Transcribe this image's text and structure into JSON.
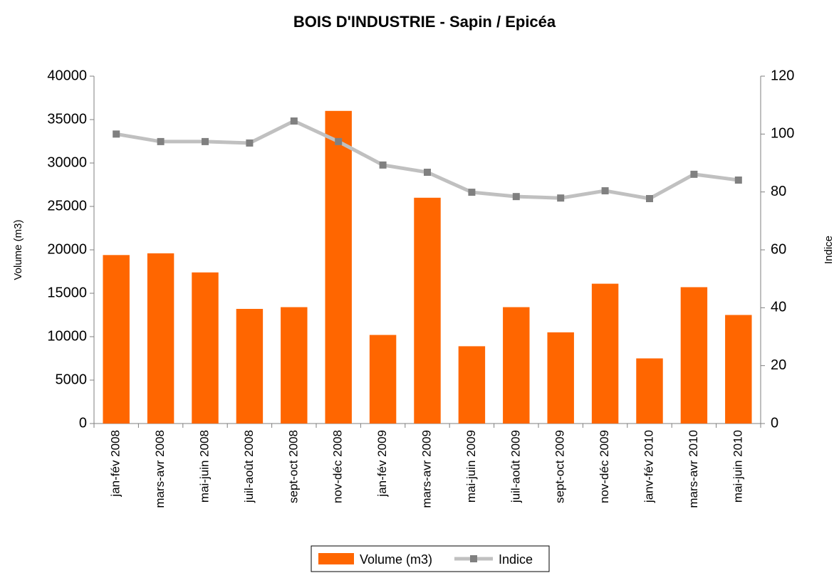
{
  "chart_data": {
    "type": "bar_line",
    "title": "BOIS D'INDUSTRIE - Sapin / Epicéa",
    "y_label": "Volume (m3)",
    "y2_label": "Indice",
    "categories": [
      "jan-fév 2008",
      "mars-avr 2008",
      "mai-juin 2008",
      "juil-août 2008",
      "sept-oct 2008",
      "nov-déc 2008",
      "jan-fév 2009",
      "mars-avr 2009",
      "mai-juin 2009",
      "juil-août 2009",
      "sept-oct 2009",
      "nov-déc 2009",
      "janv-fév 2010",
      "mars-avr 2010",
      "mai-juin 2010"
    ],
    "series": [
      {
        "name": "Volume (m3)",
        "type": "bar",
        "color": "#ff6600",
        "values": [
          19400,
          19600,
          17400,
          13200,
          13400,
          36000,
          10200,
          26000,
          8900,
          13400,
          10500,
          16100,
          7500,
          15700,
          12500
        ]
      },
      {
        "name": "Indice",
        "type": "line",
        "axis": "y2",
        "color": "#c0c0c0",
        "marker_color": "#808080",
        "values": [
          100,
          97.4,
          97.4,
          96.9,
          104.5,
          97.4,
          89.3,
          86.8,
          79.9,
          78.4,
          77.9,
          80.4,
          77.7,
          86.1,
          84.1
        ]
      }
    ],
    "ylim": [
      0,
      40000
    ],
    "yticks": [
      0,
      5000,
      10000,
      15000,
      20000,
      25000,
      30000,
      35000,
      40000
    ],
    "y2lim": [
      0,
      120
    ],
    "y2ticks": [
      0,
      20,
      40,
      60,
      80,
      100,
      120
    ],
    "legend": "bottom"
  }
}
